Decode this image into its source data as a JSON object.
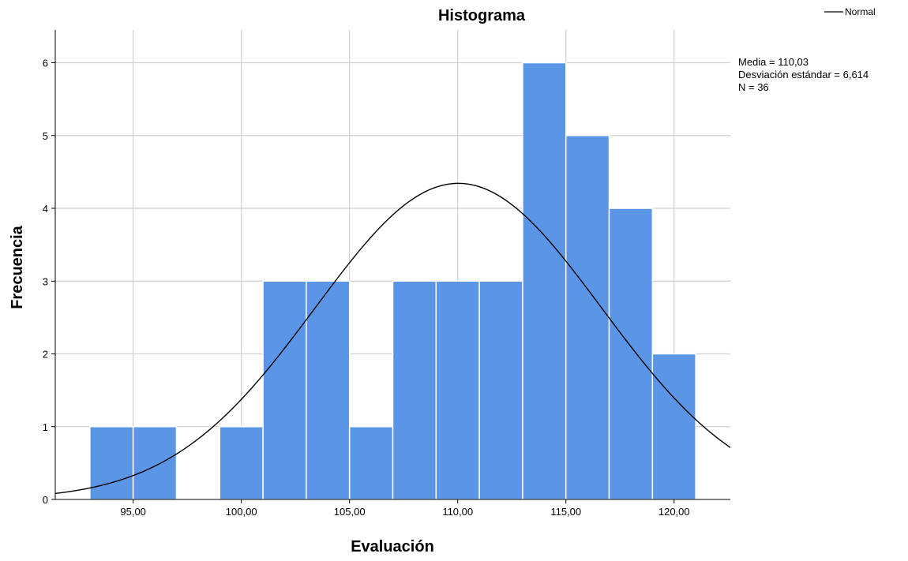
{
  "chart_data": {
    "type": "bar",
    "title": "Histograma",
    "xlabel": "Evaluación",
    "ylabel": "Frecuencia",
    "bin_width": 2,
    "bins": [
      {
        "start": 93,
        "end": 95,
        "count": 1
      },
      {
        "start": 95,
        "end": 97,
        "count": 1
      },
      {
        "start": 97,
        "end": 99,
        "count": 0
      },
      {
        "start": 99,
        "end": 101,
        "count": 1
      },
      {
        "start": 101,
        "end": 103,
        "count": 3
      },
      {
        "start": 103,
        "end": 105,
        "count": 3
      },
      {
        "start": 105,
        "end": 107,
        "count": 1
      },
      {
        "start": 107,
        "end": 109,
        "count": 3
      },
      {
        "start": 109,
        "end": 111,
        "count": 3
      },
      {
        "start": 111,
        "end": 113,
        "count": 3
      },
      {
        "start": 113,
        "end": 115,
        "count": 6
      },
      {
        "start": 115,
        "end": 117,
        "count": 5
      },
      {
        "start": 117,
        "end": 119,
        "count": 4
      },
      {
        "start": 119,
        "end": 121,
        "count": 2
      }
    ],
    "xlim": [
      91.4,
      122.6
    ],
    "ylim": [
      0,
      6.45
    ],
    "x_ticks": [
      {
        "value": 95,
        "label": "95,00"
      },
      {
        "value": 100,
        "label": "100,00"
      },
      {
        "value": 105,
        "label": "105,00"
      },
      {
        "value": 110,
        "label": "110,00"
      },
      {
        "value": 115,
        "label": "115,00"
      },
      {
        "value": 120,
        "label": "120,00"
      }
    ],
    "y_ticks": [
      {
        "value": 0,
        "label": "0"
      },
      {
        "value": 1,
        "label": "1"
      },
      {
        "value": 2,
        "label": "2"
      },
      {
        "value": 3,
        "label": "3"
      },
      {
        "value": 4,
        "label": "4"
      },
      {
        "value": 5,
        "label": "5"
      },
      {
        "value": 6,
        "label": "6"
      }
    ],
    "normal_curve": {
      "legend_label": "Normal",
      "mean": 110.03,
      "sd": 6.614,
      "n": 36
    },
    "stats_lines": [
      "Media = 110,03",
      "Desviación estándar = 6,614",
      "N = 36"
    ],
    "grid": true,
    "legend_position": "top-right",
    "colors": {
      "bar_fill": "#5b95e5",
      "bar_edge": "#ffffff",
      "grid": "#d0d0d0",
      "curve": "#000000",
      "axis": "#000000"
    }
  }
}
